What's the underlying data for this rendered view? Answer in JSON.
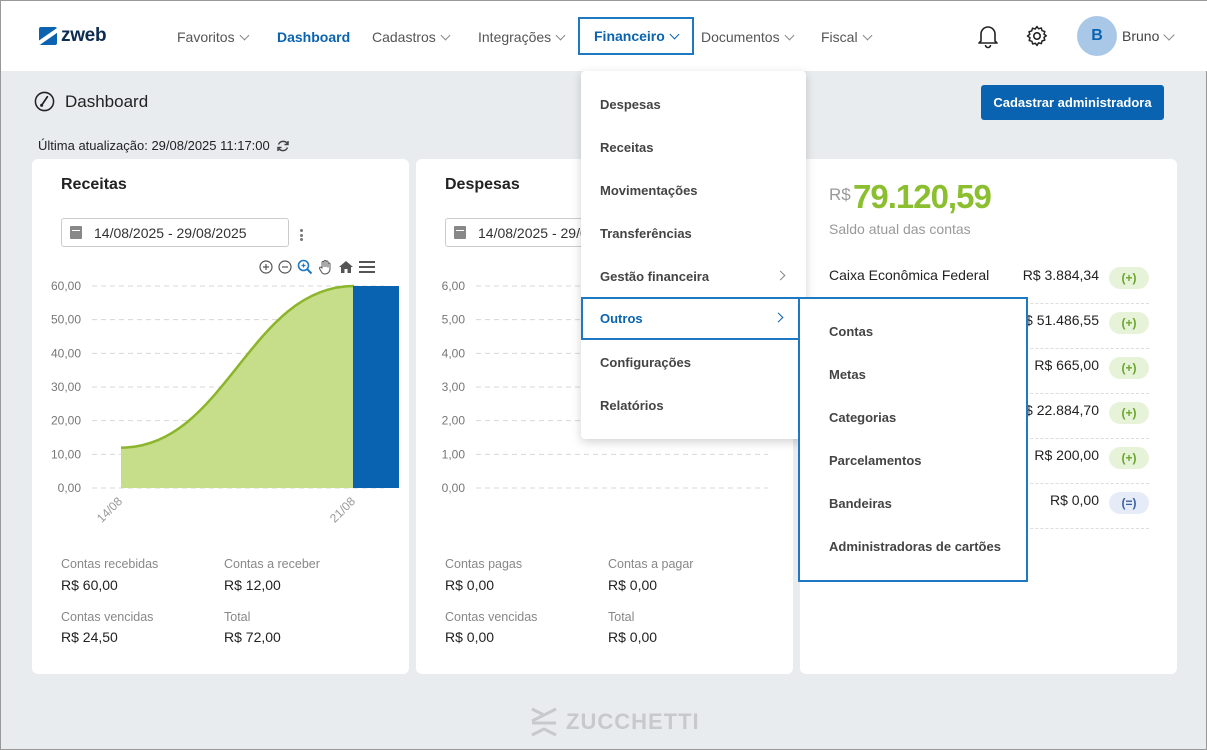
{
  "brand": {
    "logo_text": "zweb"
  },
  "nav": {
    "items": [
      {
        "label": "Favoritos"
      },
      {
        "label": "Dashboard"
      },
      {
        "label": "Cadastros"
      },
      {
        "label": "Integrações"
      },
      {
        "label": "Financeiro"
      },
      {
        "label": "Documentos"
      },
      {
        "label": "Fiscal"
      }
    ]
  },
  "user": {
    "initial": "B",
    "name": "Bruno"
  },
  "page": {
    "title": "Dashboard",
    "cta_label": "Cadastrar administradora",
    "last_update": "Última atualização: 29/08/2025 11:17:00"
  },
  "receitas": {
    "title": "Receitas",
    "date_range": "14/08/2025 - 29/08/2025",
    "stats": [
      {
        "label": "Contas recebidas",
        "value": "R$ 60,00"
      },
      {
        "label": "Contas a receber",
        "value": "R$ 12,00"
      },
      {
        "label": "Contas vencidas",
        "value": "R$ 24,50"
      },
      {
        "label": "Total",
        "value": "R$ 72,00"
      }
    ]
  },
  "despesas": {
    "title": "Despesas",
    "date_range": "14/08/2025 - 29/08/2025",
    "stats": [
      {
        "label": "Contas pagas",
        "value": "R$ 0,00"
      },
      {
        "label": "Contas a pagar",
        "value": "R$ 0,00"
      },
      {
        "label": "Contas vencidas",
        "value": "R$ 0,00"
      },
      {
        "label": "Total",
        "value": "R$ 0,00"
      }
    ]
  },
  "saldo": {
    "currency": "R$",
    "amount": "79.120,59",
    "subtitle": "Saldo atual das contas",
    "accounts": [
      {
        "name": "Caixa Econômica Federal",
        "value": "R$ 3.884,34",
        "badge": "(+)"
      },
      {
        "name": "",
        "value": "R$ 51.486,55",
        "badge": "(+)"
      },
      {
        "name": "",
        "value": "R$ 665,00",
        "badge": "(+)"
      },
      {
        "name": "",
        "value": "R$ 22.884,70",
        "badge": "(+)"
      },
      {
        "name": "",
        "value": "R$ 200,00",
        "badge": "(+)"
      },
      {
        "name": "",
        "value": "R$ 0,00",
        "badge": "(=)"
      }
    ]
  },
  "financeiro_menu": {
    "items": [
      {
        "label": "Despesas"
      },
      {
        "label": "Receitas"
      },
      {
        "label": "Movimentações"
      },
      {
        "label": "Transferências"
      },
      {
        "label": "Gestão financeira"
      },
      {
        "label": "Outros"
      },
      {
        "label": "Configurações"
      },
      {
        "label": "Relatórios"
      }
    ]
  },
  "outros_submenu": {
    "items": [
      {
        "label": "Contas"
      },
      {
        "label": "Metas"
      },
      {
        "label": "Categorias"
      },
      {
        "label": "Parcelamentos"
      },
      {
        "label": "Bandeiras"
      },
      {
        "label": "Administradoras de cartões"
      }
    ]
  },
  "footer": {
    "brand": "ZUCCHETTI"
  },
  "colors": {
    "primary": "#0a63b0",
    "accent_green": "#8bbf2f",
    "area_fill": "#c6dd8a",
    "bar_blue": "#0a63b0"
  },
  "chart_data": [
    {
      "type": "area",
      "title": "Receitas",
      "x": [
        "14/08",
        "21/08"
      ],
      "series": [
        {
          "type": "area",
          "values": [
            12,
            60
          ]
        },
        {
          "type": "bar",
          "values": [
            null,
            60
          ]
        }
      ],
      "yticks": [
        "0,00",
        "10,00",
        "20,00",
        "30,00",
        "40,00",
        "50,00",
        "60,00"
      ],
      "ylim": [
        0,
        60
      ],
      "grid": true
    },
    {
      "type": "line",
      "title": "Despesas",
      "x": [],
      "series": [],
      "yticks": [
        "0,00",
        "1,00",
        "2,00",
        "3,00",
        "4,00",
        "5,00",
        "6,00"
      ],
      "ylim": [
        0,
        6
      ],
      "grid": true
    }
  ]
}
